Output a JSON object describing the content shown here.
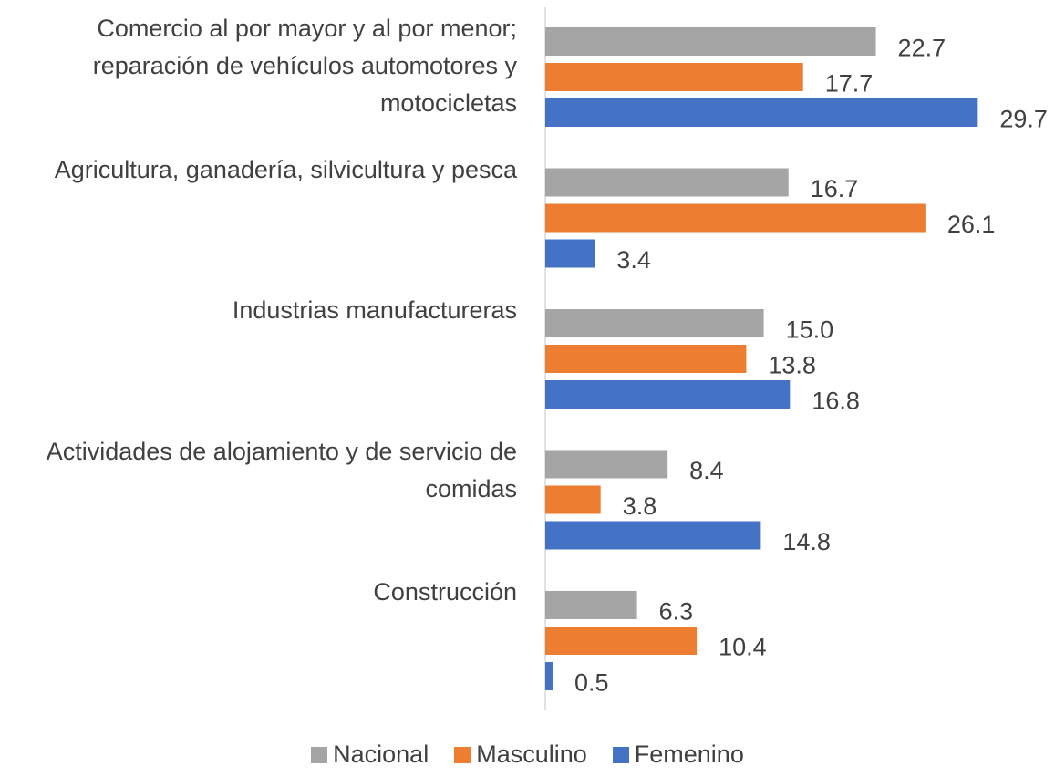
{
  "chart_data": {
    "type": "hbar",
    "categories": [
      "Comercio al por mayor y al por menor; reparación de vehículos automotores y motocicletas",
      "Agricultura, ganadería, silvicultura y pesca",
      "Industrias manufactureras",
      "Actividades de alojamiento y de servicio de comidas",
      "Construcción"
    ],
    "series": [
      {
        "name": "Nacional",
        "color": "#a5a5a5",
        "values": [
          22.7,
          16.7,
          15.0,
          8.4,
          6.3
        ],
        "value_labels": [
          "22.7",
          "16.7",
          "15.0",
          "8.4",
          "6.3"
        ]
      },
      {
        "name": "Masculino",
        "color": "#ed7d31",
        "values": [
          17.7,
          26.1,
          13.8,
          3.8,
          10.4
        ],
        "value_labels": [
          "17.7",
          "26.1",
          "13.8",
          "3.8",
          "10.4"
        ]
      },
      {
        "name": "Femenino",
        "color": "#4472c4",
        "values": [
          29.7,
          3.4,
          16.8,
          14.8,
          0.5
        ],
        "value_labels": [
          "29.7",
          "3.4",
          "16.8",
          "14.8",
          "0.5"
        ]
      }
    ],
    "xlim": [
      0,
      35
    ],
    "legend": "bottom"
  }
}
